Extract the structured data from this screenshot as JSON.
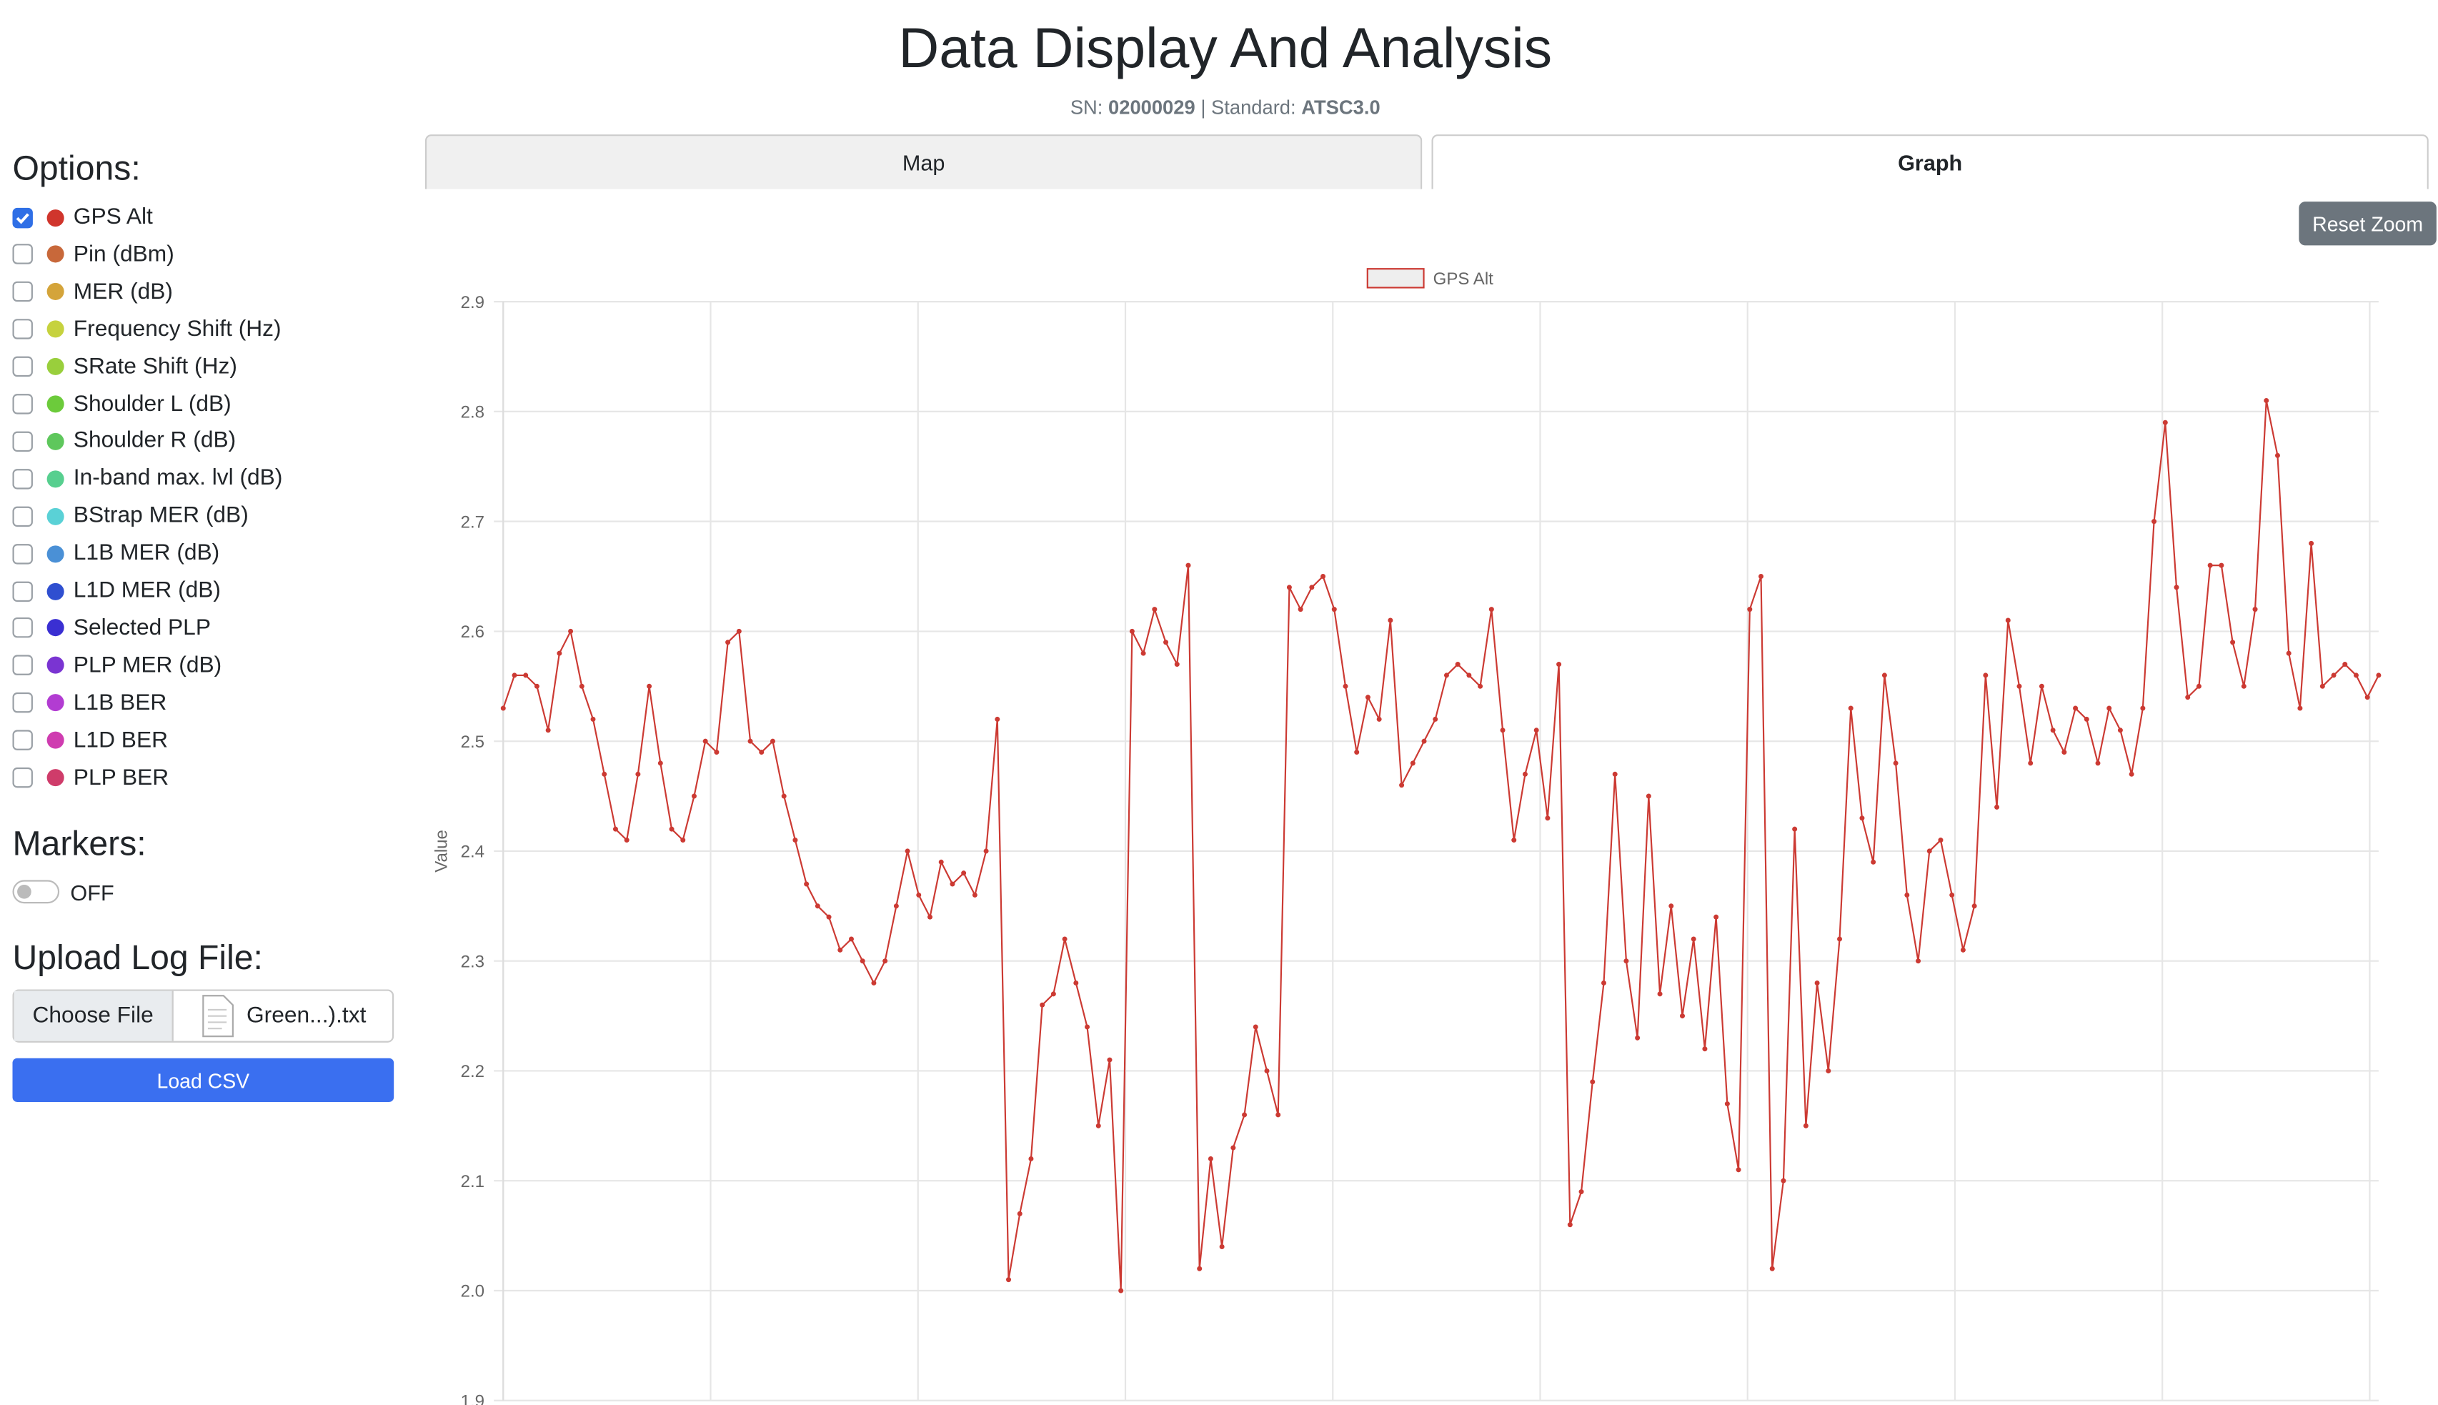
{
  "header": {
    "title": "Data Display And Analysis",
    "sn_label": "SN:",
    "sn": "02000029",
    "separator": "|",
    "standard_label": "Standard:",
    "standard": "ATSC3.0"
  },
  "sidebar": {
    "options_title": "Options:",
    "options": [
      {
        "label": "GPS Alt",
        "color": "#d0352c",
        "checked": true
      },
      {
        "label": "Pin (dBm)",
        "color": "#c8683a",
        "checked": false
      },
      {
        "label": "MER (dB)",
        "color": "#d4a43a",
        "checked": false
      },
      {
        "label": "Frequency Shift (Hz)",
        "color": "#c6d23e",
        "checked": false
      },
      {
        "label": "SRate Shift (Hz)",
        "color": "#99cf3c",
        "checked": false
      },
      {
        "label": "Shoulder L (dB)",
        "color": "#6ccb3b",
        "checked": false
      },
      {
        "label": "Shoulder R (dB)",
        "color": "#5ec75c",
        "checked": false
      },
      {
        "label": "In-band max. lvl (dB)",
        "color": "#57cf8f",
        "checked": false
      },
      {
        "label": "BStrap MER (dB)",
        "color": "#5ad1d6",
        "checked": false
      },
      {
        "label": "L1B MER (dB)",
        "color": "#4a90d6",
        "checked": false
      },
      {
        "label": "L1D MER (dB)",
        "color": "#2f4fd0",
        "checked": false
      },
      {
        "label": "Selected PLP",
        "color": "#3a2fd2",
        "checked": false
      },
      {
        "label": "PLP MER (dB)",
        "color": "#7a34d2",
        "checked": false
      },
      {
        "label": "L1B BER",
        "color": "#b23cd2",
        "checked": false
      },
      {
        "label": "L1D BER",
        "color": "#cf3cb0",
        "checked": false
      },
      {
        "label": "PLP BER",
        "color": "#cf3c6a",
        "checked": false
      }
    ],
    "markers_title": "Markers:",
    "markers_state": "OFF",
    "upload_title": "Upload Log File:",
    "choose_file": "Choose File",
    "file_name": "Green...).txt",
    "load_button": "Load CSV"
  },
  "tabs": [
    "Map",
    "Graph"
  ],
  "reset_zoom": "Reset Zoom",
  "chart_data": {
    "type": "line",
    "y_label": "Value",
    "ylim": [
      1.9,
      2.9
    ],
    "yticks": [
      1.9,
      {
        "value": 2,
        "label": "2.0"
      },
      2.1,
      2.2,
      2.3,
      2.4,
      2.5,
      2.6,
      2.7,
      2.8,
      2.9
    ],
    "grid": true,
    "series": [
      {
        "name": "GPS Alt",
        "color": "#cc3a33",
        "values": [
          2.53,
          2.56,
          2.56,
          2.55,
          2.51,
          2.58,
          2.6,
          2.55,
          2.52,
          2.47,
          2.42,
          2.41,
          2.47,
          2.55,
          2.48,
          2.42,
          2.41,
          2.45,
          2.5,
          2.49,
          2.59,
          2.6,
          2.5,
          2.49,
          2.5,
          2.45,
          2.41,
          2.37,
          2.35,
          2.34,
          2.31,
          2.32,
          2.3,
          2.28,
          2.3,
          2.35,
          2.4,
          2.36,
          2.34,
          2.39,
          2.37,
          2.38,
          2.36,
          2.4,
          2.52,
          2.01,
          2.07,
          2.12,
          2.26,
          2.27,
          2.32,
          2.28,
          2.24,
          2.15,
          2.21,
          2.0,
          2.6,
          2.58,
          2.62,
          2.59,
          2.57,
          2.66,
          2.02,
          2.12,
          2.04,
          2.13,
          2.16,
          2.24,
          2.2,
          2.16,
          2.64,
          2.62,
          2.64,
          2.65,
          2.62,
          2.55,
          2.49,
          2.54,
          2.52,
          2.61,
          2.46,
          2.48,
          2.5,
          2.52,
          2.56,
          2.57,
          2.56,
          2.55,
          2.62,
          2.51,
          2.41,
          2.47,
          2.51,
          2.43,
          2.57,
          2.06,
          2.09,
          2.19,
          2.28,
          2.47,
          2.3,
          2.23,
          2.45,
          2.27,
          2.35,
          2.25,
          2.32,
          2.22,
          2.34,
          2.17,
          2.11,
          2.62,
          2.65,
          2.02,
          2.1,
          2.42,
          2.15,
          2.28,
          2.2,
          2.32,
          2.53,
          2.43,
          2.39,
          2.56,
          2.48,
          2.36,
          2.3,
          2.4,
          2.41,
          2.36,
          2.31,
          2.35,
          2.56,
          2.44,
          2.61,
          2.55,
          2.48,
          2.55,
          2.51,
          2.49,
          2.53,
          2.52,
          2.48,
          2.53,
          2.51,
          2.47,
          2.53,
          2.7,
          2.79,
          2.64,
          2.54,
          2.55,
          2.66,
          2.66,
          2.59,
          2.55,
          2.62,
          2.81,
          2.76,
          2.58,
          2.53,
          2.68,
          2.55,
          2.56,
          2.57,
          2.56,
          2.54,
          2.56
        ]
      }
    ]
  }
}
